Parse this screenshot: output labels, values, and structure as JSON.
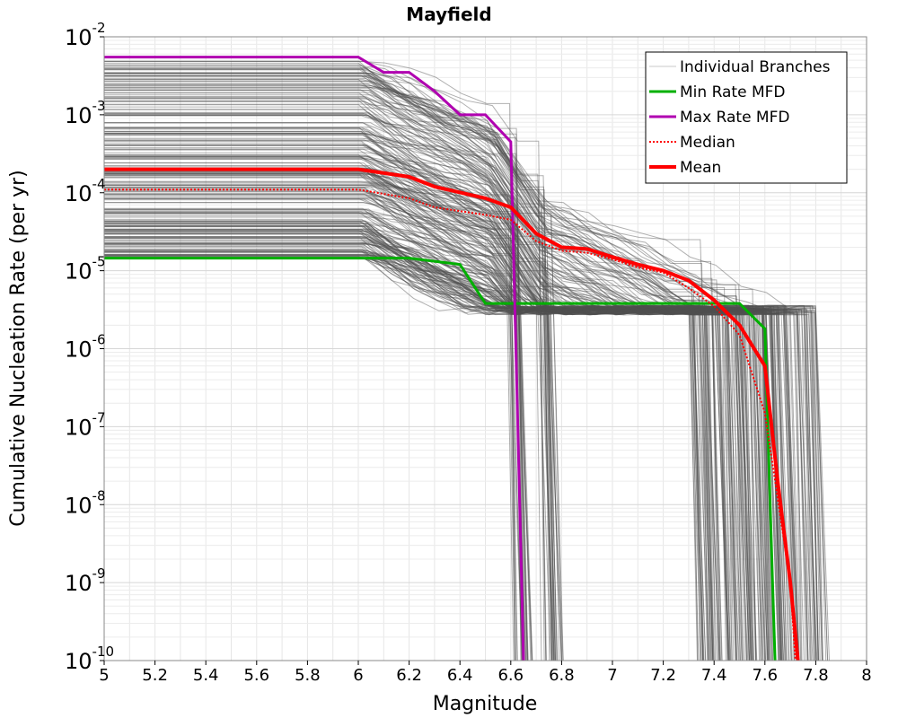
{
  "chart_data": {
    "type": "line",
    "title": "Mayfield",
    "xlabel": "Magnitude",
    "ylabel": "Cumulative Nucleation Rate (per yr)",
    "xlim": [
      5,
      8
    ],
    "ylim": [
      1e-10,
      0.01
    ],
    "yscale": "log",
    "grid": true,
    "legend_position": "top-right",
    "x_ticks": [
      5,
      5.2,
      5.4,
      5.6,
      5.8,
      6,
      6.2,
      6.4,
      6.6,
      6.8,
      7,
      7.2,
      7.4,
      7.6,
      7.8,
      8
    ],
    "x_tick_labels": [
      "5",
      "5.2",
      "5.4",
      "5.6",
      "5.8",
      "6",
      "6.2",
      "6.4",
      "6.6",
      "6.8",
      "7",
      "7.2",
      "7.4",
      "7.6",
      "7.8",
      "8"
    ],
    "y_ticks": [
      {
        "value": 0.01,
        "base": "10",
        "exp": "-2"
      },
      {
        "value": 0.001,
        "base": "10",
        "exp": "-3"
      },
      {
        "value": 0.0001,
        "base": "10",
        "exp": "-4"
      },
      {
        "value": 1e-05,
        "base": "10",
        "exp": "-5"
      },
      {
        "value": 1e-06,
        "base": "10",
        "exp": "-6"
      },
      {
        "value": 1e-07,
        "base": "10",
        "exp": "-7"
      },
      {
        "value": 1e-08,
        "base": "10",
        "exp": "-8"
      },
      {
        "value": 1e-09,
        "base": "10",
        "exp": "-9"
      },
      {
        "value": 1e-10,
        "base": "10",
        "exp": "-10"
      }
    ],
    "series": [
      {
        "name": "Min Rate MFD",
        "color": "#00b000",
        "dash": "solid",
        "x": [
          5.0,
          6.0,
          6.2,
          6.4,
          6.5,
          7.5,
          7.6,
          7.63,
          7.64
        ],
        "y": [
          1.45e-05,
          1.45e-05,
          1.45e-05,
          1.2e-05,
          3.8e-06,
          3.8e-06,
          1.8e-06,
          1e-09,
          1e-10
        ]
      },
      {
        "name": "Max Rate MFD",
        "color": "#b000b0",
        "dash": "solid",
        "x": [
          5.0,
          6.0,
          6.1,
          6.2,
          6.3,
          6.4,
          6.5,
          6.6,
          6.62,
          6.65
        ],
        "y": [
          0.0055,
          0.0055,
          0.0035,
          0.0035,
          0.002,
          0.001,
          0.001,
          0.00045,
          1e-06,
          1e-10
        ]
      },
      {
        "name": "Median",
        "color": "#ff0000",
        "dash": "dotted",
        "x": [
          5.0,
          6.0,
          6.2,
          6.3,
          6.5,
          6.6,
          6.7,
          6.8,
          6.9,
          7.0,
          7.1,
          7.2,
          7.3,
          7.4,
          7.5,
          7.6,
          7.7,
          7.72
        ],
        "y": [
          0.00011,
          0.00011,
          8.5e-05,
          6.5e-05,
          5.2e-05,
          4.5e-05,
          2.4e-05,
          1.8e-05,
          1.7e-05,
          1.4e-05,
          1.1e-05,
          9.5e-06,
          6e-06,
          3.5e-06,
          1.5e-06,
          1.5e-07,
          1e-09,
          1e-10
        ]
      },
      {
        "name": "Mean",
        "color": "#ff0000",
        "dash": "solid",
        "x": [
          5.0,
          6.0,
          6.2,
          6.3,
          6.5,
          6.6,
          6.7,
          6.8,
          6.9,
          7.0,
          7.1,
          7.2,
          7.3,
          7.4,
          7.5,
          7.6,
          7.65,
          7.7,
          7.73
        ],
        "y": [
          0.0002,
          0.0002,
          0.00016,
          0.00012,
          8.5e-05,
          6.5e-05,
          3e-05,
          2e-05,
          1.9e-05,
          1.5e-05,
          1.2e-05,
          1e-05,
          7.5e-06,
          4.2e-06,
          2e-06,
          6e-07,
          2e-08,
          1e-09,
          1e-10
        ]
      }
    ],
    "legend": [
      {
        "label": "Individual Branches",
        "color": "#c8c8c8",
        "dash": "solid",
        "width": 1
      },
      {
        "label": "Min Rate MFD",
        "color": "#00b000",
        "dash": "solid",
        "width": 3
      },
      {
        "label": "Max Rate MFD",
        "color": "#b000b0",
        "dash": "solid",
        "width": 3
      },
      {
        "label": "Median",
        "color": "#ff0000",
        "dash": "dotted",
        "width": 2
      },
      {
        "label": "Mean",
        "color": "#ff0000",
        "dash": "solid",
        "width": 4
      }
    ],
    "branches": {
      "description_label": "Individual Branches",
      "color": "#505050",
      "count": 260,
      "low_rate_range": [
        1.45e-05,
        0.005
      ],
      "groups": [
        {
          "share": 0.12,
          "cutoff_range": [
            6.58,
            6.64
          ]
        },
        {
          "share": 0.14,
          "cutoff_range": [
            6.7,
            6.76
          ]
        },
        {
          "share": 0.74,
          "cutoff_range": [
            7.3,
            7.8
          ]
        }
      ]
    }
  }
}
